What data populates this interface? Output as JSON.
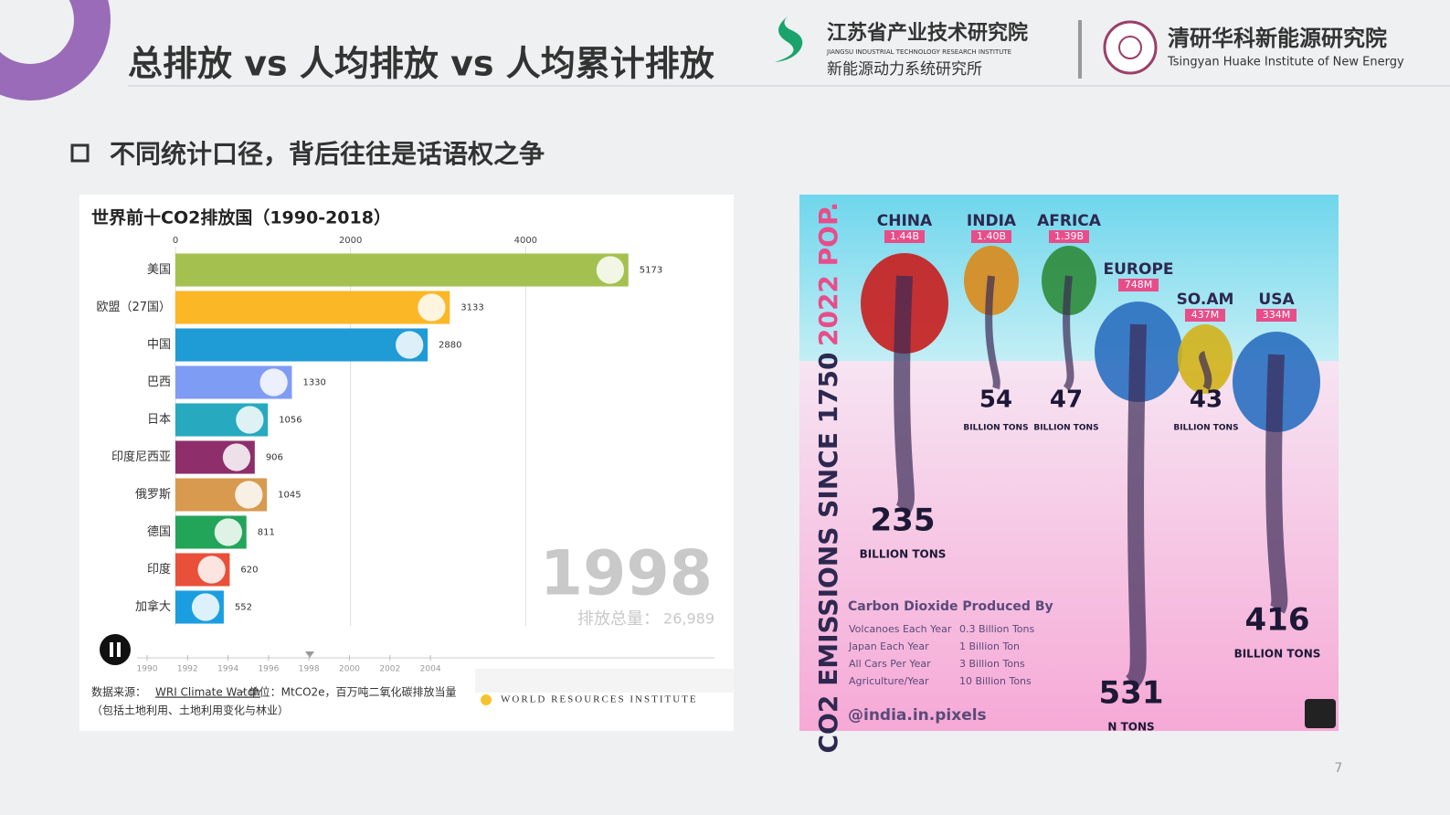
{
  "header": {
    "title": "总排放 vs 人均排放 vs 人均累计排放",
    "logo1_name": "江苏省产业技术研究院",
    "logo1_en": "JIANGSU INDUSTRIAL TECHNOLOGY RESEARCH INSTITUTE",
    "logo1_sub": "新能源动力系统研究所",
    "logo2_name": "清研华科新能源研究院",
    "logo2_en": "Tsingyan Huake Institute of New Energy"
  },
  "bullet": "不同统计口径，背后往往是话语权之争",
  "chart_data": {
    "type": "bar",
    "orientation": "horizontal",
    "title": "世界前十CO2排放国（1990-2018）",
    "categories": [
      "美国",
      "欧盟（27国）",
      "中国",
      "巴西",
      "日本",
      "印度尼西亚",
      "俄罗斯",
      "德国",
      "印度",
      "加拿大"
    ],
    "values": [
      5173,
      3133,
      2880,
      1330,
      1056,
      906,
      1045,
      811,
      620,
      552
    ],
    "colors": [
      "#a4c150",
      "#fbb726",
      "#1f9bd6",
      "#7f9cf5",
      "#27a9c0",
      "#8e2e6a",
      "#d89a4f",
      "#23a559",
      "#e9503a",
      "#1a9ee0"
    ],
    "xlim": [
      0,
      6000
    ],
    "xticks": [
      0,
      2000,
      4000
    ],
    "grid": true
  },
  "chart_extra": {
    "year": "1998",
    "total_label": "排放总量：",
    "total": "26,989",
    "timeline": [
      "1990",
      "1992",
      "1994",
      "1996",
      "1998",
      "2000",
      "2002",
      "2004"
    ],
    "source_prefix": "数据来源：",
    "source_link": "WRI Climate Watch",
    "source_unit": "· 单位：MtCO2e，百万吨二氧化碳排放当量",
    "source_note": "（包括土地利用、土地利用变化与林业）",
    "wri": "WORLD RESOURCES INSTITUTE"
  },
  "infographic": {
    "side_title": "2022 POP.",
    "axis_title": "CO2 EMISSIONS SINCE 1750",
    "regions": [
      {
        "name": "CHINA",
        "pop": "1.44B",
        "emissions": "235",
        "unit": "BILLION TONS"
      },
      {
        "name": "INDIA",
        "pop": "1.40B",
        "emissions": "54",
        "unit": "BILLION TONS"
      },
      {
        "name": "AFRICA",
        "pop": "1.39B",
        "emissions": "47",
        "unit": "BILLION TONS"
      },
      {
        "name": "EUROPE",
        "pop": "748M",
        "emissions": "531",
        "unit": "N TONS"
      },
      {
        "name": "SO.AM",
        "pop": "437M",
        "emissions": "43",
        "unit": "BILLION TONS"
      },
      {
        "name": "USA",
        "pop": "334M",
        "emissions": "416",
        "unit": "BILLION TONS"
      }
    ],
    "produced_by": {
      "title": "Carbon Dioxide Produced By",
      "rows": [
        [
          "Volcanoes Each Year",
          "0.3 Billion Tons"
        ],
        [
          "Japan Each Year",
          "1 Billion Ton"
        ],
        [
          "All Cars Per Year",
          "3 Billion Tons"
        ],
        [
          "Agriculture/Year",
          "10 Billion Tons"
        ]
      ]
    },
    "credit": "@india.in.pixels"
  },
  "page_number": "7"
}
